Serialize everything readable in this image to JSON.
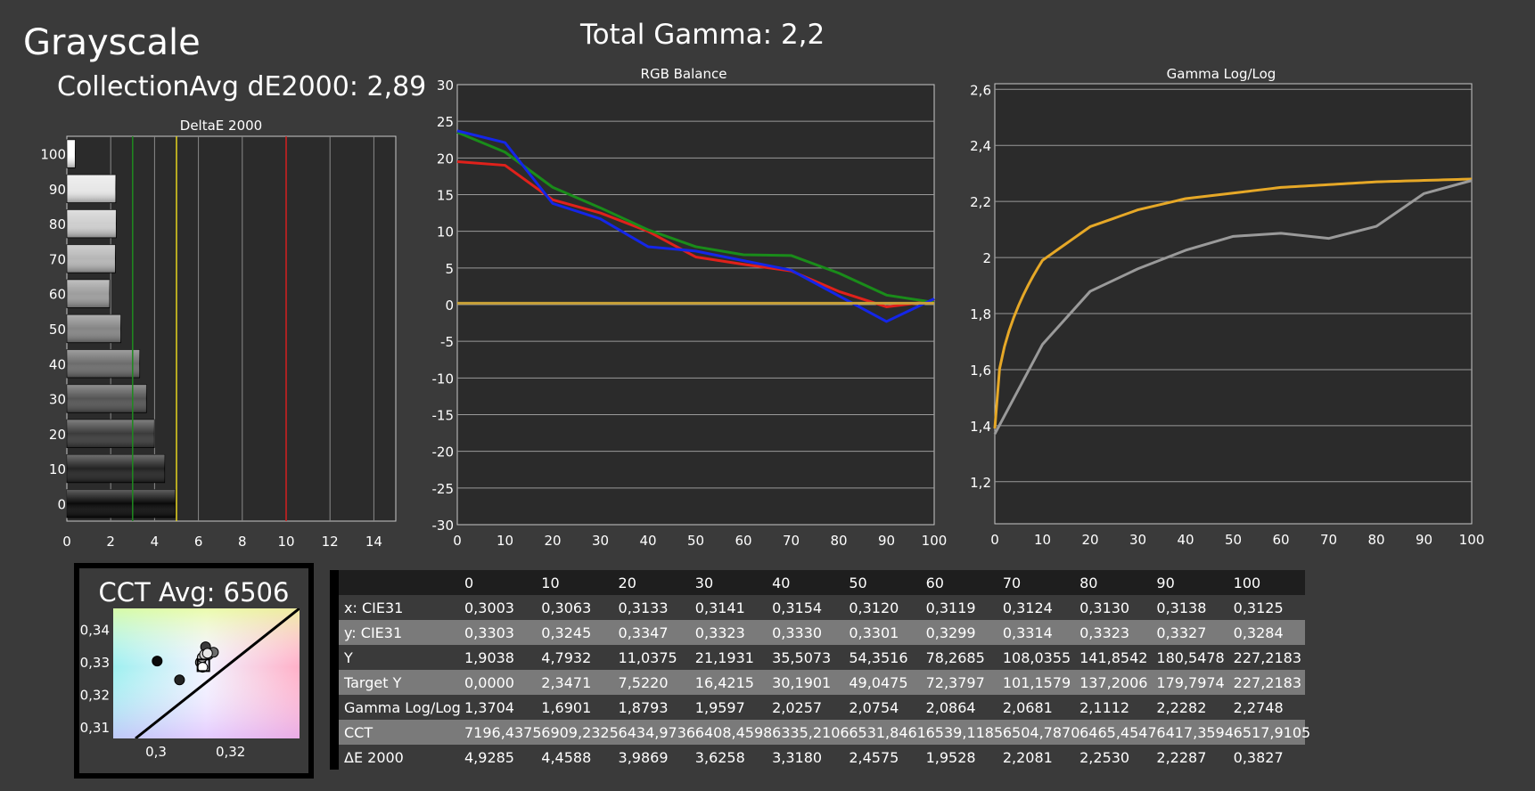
{
  "title": "Grayscale",
  "avg_label": "CollectionAvg dE2000: 2,89",
  "gamma_label": "Total Gamma: 2,2",
  "cct_title": "CCT Avg: 6506",
  "table": {
    "headers": [
      "0",
      "10",
      "20",
      "30",
      "40",
      "50",
      "60",
      "70",
      "80",
      "90",
      "100"
    ],
    "rows": [
      {
        "label": "x: CIE31",
        "values": [
          "0,3003",
          "0,3063",
          "0,3133",
          "0,3141",
          "0,3154",
          "0,3120",
          "0,3119",
          "0,3124",
          "0,3130",
          "0,3138",
          "0,3125"
        ]
      },
      {
        "label": "y: CIE31",
        "values": [
          "0,3303",
          "0,3245",
          "0,3347",
          "0,3323",
          "0,3330",
          "0,3301",
          "0,3299",
          "0,3314",
          "0,3323",
          "0,3327",
          "0,3284"
        ]
      },
      {
        "label": "Y",
        "values": [
          "1,9038",
          "4,7932",
          "11,0375",
          "21,1931",
          "35,5073",
          "54,3516",
          "78,2685",
          "108,0355",
          "141,8542",
          "180,5478",
          "227,2183"
        ]
      },
      {
        "label": "Target Y",
        "values": [
          "0,0000",
          "2,3471",
          "7,5220",
          "16,4215",
          "30,1901",
          "49,0475",
          "72,3797",
          "101,1579",
          "137,2006",
          "179,7974",
          "227,2183"
        ]
      },
      {
        "label": "Gamma Log/Log",
        "values": [
          "1,3704",
          "1,6901",
          "1,8793",
          "1,9597",
          "2,0257",
          "2,0754",
          "2,0864",
          "2,0681",
          "2,1112",
          "2,2282",
          "2,2748"
        ]
      },
      {
        "label": "CCT",
        "values": [
          "7196,4375",
          "6909,2325",
          "6434,9736",
          "6408,4598",
          "6335,2106",
          "6531,8461",
          "6539,1185",
          "6504,7870",
          "6465,4547",
          "6417,3594",
          "6517,9105"
        ]
      },
      {
        "label": "ΔE 2000",
        "values": [
          "4,9285",
          "4,4588",
          "3,9869",
          "3,6258",
          "3,3180",
          "2,4575",
          "1,9528",
          "2,2081",
          "2,2530",
          "2,2287",
          "0,3827"
        ]
      }
    ]
  },
  "chart_data": [
    {
      "type": "bar",
      "orientation": "horizontal",
      "title": "DeltaE 2000",
      "categories": [
        "0",
        "10",
        "20",
        "30",
        "40",
        "50",
        "60",
        "70",
        "80",
        "90",
        "100"
      ],
      "values": [
        4.93,
        4.46,
        3.99,
        3.63,
        3.32,
        2.46,
        1.95,
        2.21,
        2.25,
        2.23,
        0.38
      ],
      "xlim": [
        0,
        15
      ],
      "xticks": [
        "0",
        "2",
        "4",
        "6",
        "8",
        "10",
        "12",
        "14"
      ],
      "xtick_values": [
        0,
        2,
        4,
        6,
        8,
        10,
        12,
        14
      ],
      "reference_lines": [
        {
          "value": 3,
          "color": "#1e8a1e"
        },
        {
          "value": 5,
          "color": "#e6d31e"
        },
        {
          "value": 10,
          "color": "#d42020"
        }
      ]
    },
    {
      "type": "line",
      "title": "RGB Balance",
      "x": [
        0,
        10,
        20,
        30,
        40,
        50,
        60,
        70,
        80,
        90,
        100
      ],
      "xticks": [
        "0",
        "10",
        "20",
        "30",
        "40",
        "50",
        "60",
        "70",
        "80",
        "90",
        "100"
      ],
      "ylim": [
        -30,
        30
      ],
      "yticks": [
        "30",
        "25",
        "20",
        "15",
        "10",
        "5",
        "0",
        "-5",
        "-10",
        "-15",
        "-20",
        "-25",
        "-30"
      ],
      "ytick_values": [
        30,
        25,
        20,
        15,
        10,
        5,
        0,
        -5,
        -10,
        -15,
        -20,
        -25,
        -30
      ],
      "series": [
        {
          "color": "#e0211b",
          "values": [
            19.5,
            19.0,
            14.3,
            12.5,
            10.0,
            6.5,
            5.5,
            4.6,
            1.8,
            -0.3,
            0.5
          ]
        },
        {
          "color": "#1a8c1a",
          "values": [
            23.5,
            20.8,
            16.0,
            13.2,
            10.2,
            7.9,
            6.8,
            6.7,
            4.3,
            1.3,
            0.3
          ]
        },
        {
          "color": "#1426e8",
          "values": [
            23.7,
            22.1,
            13.8,
            11.7,
            7.9,
            7.3,
            6.0,
            4.7,
            1.2,
            -2.3,
            0.8
          ]
        },
        {
          "color": "#c8a037",
          "values": [
            0.2,
            0.2,
            0.2,
            0.2,
            0.2,
            0.2,
            0.2,
            0.2,
            0.2,
            0.2,
            0.2
          ]
        }
      ]
    },
    {
      "type": "line",
      "title": "Gamma Log/Log",
      "x": [
        0,
        10,
        20,
        30,
        40,
        50,
        60,
        70,
        80,
        90,
        100
      ],
      "xticks": [
        "0",
        "10",
        "20",
        "30",
        "40",
        "50",
        "60",
        "70",
        "80",
        "90",
        "100"
      ],
      "ylim": [
        1.05,
        2.62
      ],
      "yticks": [
        "2,6",
        "2,4",
        "2,2",
        "2",
        "1,8",
        "1,6",
        "1,4",
        "1,2"
      ],
      "ytick_values": [
        2.6,
        2.4,
        2.2,
        2.0,
        1.8,
        1.6,
        1.4,
        1.2
      ],
      "series": [
        {
          "color": "#e6a827",
          "values": [
            1.39,
            1.99,
            2.11,
            2.17,
            2.21,
            2.23,
            2.25,
            2.26,
            2.27,
            2.275,
            2.28
          ]
        },
        {
          "color": "#9a9a9a",
          "values": [
            1.3704,
            1.6901,
            1.8793,
            1.9597,
            2.0257,
            2.0754,
            2.0864,
            2.0681,
            2.1112,
            2.2282,
            2.2748
          ]
        }
      ]
    },
    {
      "type": "scatter",
      "title": "CCT Avg: 6506",
      "xticks": [
        "0,3",
        "0,32"
      ],
      "xtick_values": [
        0.3,
        0.32
      ],
      "yticks": [
        "0,34",
        "0,33",
        "0,32",
        "0,31"
      ],
      "ytick_values": [
        0.34,
        0.33,
        0.32,
        0.31
      ],
      "xlim": [
        0.2885,
        0.3385
      ],
      "ylim": [
        0.3065,
        0.3465
      ],
      "points": [
        {
          "x": 0.3003,
          "y": 0.3303
        },
        {
          "x": 0.3063,
          "y": 0.3245
        },
        {
          "x": 0.3133,
          "y": 0.3347
        },
        {
          "x": 0.3141,
          "y": 0.3323
        },
        {
          "x": 0.3154,
          "y": 0.333
        },
        {
          "x": 0.312,
          "y": 0.3301
        },
        {
          "x": 0.3119,
          "y": 0.3299
        },
        {
          "x": 0.3124,
          "y": 0.3314
        },
        {
          "x": 0.313,
          "y": 0.3323
        },
        {
          "x": 0.3138,
          "y": 0.3327
        },
        {
          "x": 0.3125,
          "y": 0.3284
        }
      ],
      "target": {
        "x": 0.3127,
        "y": 0.329
      }
    }
  ]
}
